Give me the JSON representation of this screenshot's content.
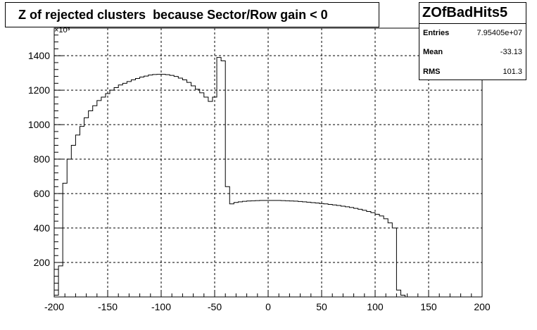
{
  "title": "Z of rejected clusters  because Sector/Row gain < 0",
  "stats": {
    "name": "ZOfBadHits5",
    "rows": [
      {
        "label": "Entries",
        "value": "7.95405e+07"
      },
      {
        "label": "Mean",
        "value": "-33.13"
      },
      {
        "label": "RMS",
        "value": "101.3"
      }
    ]
  },
  "chart_data": {
    "type": "histogram-step",
    "title": "Z of rejected clusters  because Sector/Row gain < 0",
    "xlim": [
      -200,
      200
    ],
    "ylim": [
      0,
      1560
    ],
    "y_exponent_label": "×10³",
    "x_ticks": [
      -200,
      -150,
      -100,
      -50,
      0,
      50,
      100,
      150,
      200
    ],
    "x_tick_labels": [
      "-200",
      "-150",
      "-100",
      "-50",
      "0",
      "50",
      "100",
      "150",
      "200"
    ],
    "y_ticks": [
      200,
      400,
      600,
      800,
      1000,
      1200,
      1400
    ],
    "y_tick_labels": [
      "200",
      "400",
      "600",
      "800",
      "1000",
      "1200",
      "1400"
    ],
    "grid": true,
    "bin_width": 4,
    "bin_edges_start": -200,
    "values": [
      10,
      180,
      660,
      800,
      880,
      940,
      990,
      1040,
      1080,
      1110,
      1140,
      1160,
      1180,
      1200,
      1215,
      1230,
      1240,
      1250,
      1260,
      1268,
      1276,
      1282,
      1288,
      1291,
      1292,
      1292,
      1290,
      1286,
      1280,
      1270,
      1260,
      1245,
      1225,
      1205,
      1185,
      1160,
      1135,
      1160,
      1390,
      1370,
      640,
      540,
      548,
      552,
      555,
      557,
      558,
      559,
      560,
      560,
      560,
      560,
      560,
      559,
      558,
      557,
      556,
      554,
      552,
      550,
      547,
      545,
      542,
      540,
      537,
      534,
      531,
      527,
      523,
      519,
      514,
      509,
      503,
      496,
      489,
      480,
      470,
      454,
      430,
      400,
      40,
      10
    ]
  }
}
